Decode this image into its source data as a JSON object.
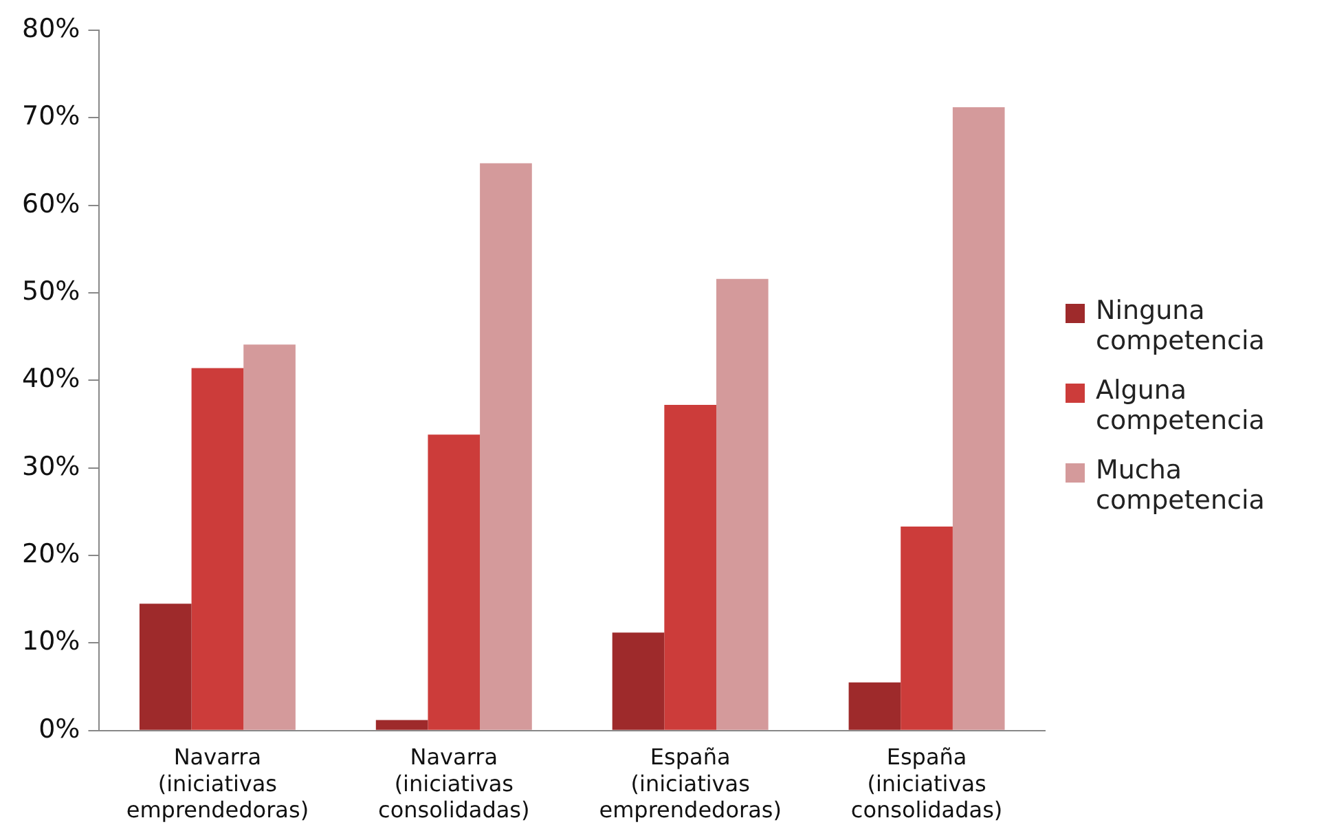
{
  "chart_data": {
    "type": "bar",
    "categories": [
      "Navarra (iniciativas emprendedoras)",
      "Navarra (iniciativas consolidadas)",
      "España (iniciativas emprendedoras)",
      "España (iniciativas consolidadas)"
    ],
    "series": [
      {
        "name": "Ninguna competencia",
        "color": "#9e2a2b",
        "values": [
          14.5,
          1.2,
          11.2,
          5.5
        ]
      },
      {
        "name": "Alguna competencia",
        "color": "#cc3c3a",
        "values": [
          41.4,
          33.8,
          37.2,
          23.3
        ]
      },
      {
        "name": "Mucha competencia",
        "color": "#d49a9b",
        "values": [
          44.1,
          64.8,
          51.6,
          71.2
        ]
      }
    ],
    "ylim": [
      0,
      80
    ],
    "yticks": [
      {
        "value": 0,
        "label": "0%"
      },
      {
        "value": 10,
        "label": "10%"
      },
      {
        "value": 20,
        "label": "20%"
      },
      {
        "value": 30,
        "label": "30%"
      },
      {
        "value": 40,
        "label": "40%"
      },
      {
        "value": 50,
        "label": "50%"
      },
      {
        "value": 60,
        "label": "60%"
      },
      {
        "value": 70,
        "label": "70%"
      },
      {
        "value": 80,
        "label": "80%"
      }
    ],
    "grid": false,
    "legend": "right"
  }
}
